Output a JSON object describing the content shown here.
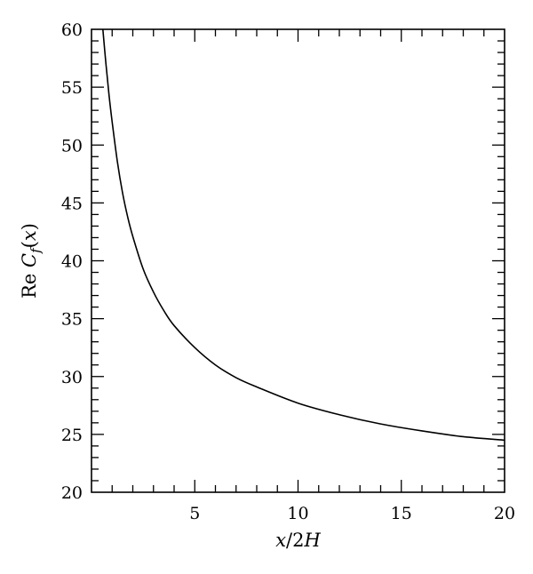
{
  "chart_data": {
    "type": "line",
    "title": "",
    "xlabel": "x/2H",
    "ylabel": "Re C_f(x)",
    "xlim": [
      0,
      20
    ],
    "ylim": [
      20,
      60
    ],
    "x_ticks": [
      5,
      10,
      15,
      20
    ],
    "x_tick_labels": [
      "5",
      "10",
      "15",
      "20"
    ],
    "y_ticks": [
      20,
      25,
      30,
      35,
      40,
      45,
      50,
      55,
      60
    ],
    "y_tick_labels": [
      "20",
      "25",
      "30",
      "35",
      "40",
      "45",
      "50",
      "55",
      "60"
    ],
    "grid": false,
    "legend": "none",
    "series": [
      {
        "color": "#000000",
        "x": [
          0.55,
          0.7,
          0.85,
          1.0,
          1.25,
          1.5,
          1.75,
          2.0,
          2.5,
          3.0,
          3.5,
          4.0,
          5.0,
          6.0,
          7.0,
          8.0,
          10.0,
          12.0,
          14.0,
          16.0,
          18.0,
          20.0
        ],
        "y": [
          60.0,
          57.0,
          54.3,
          52.0,
          48.6,
          45.9,
          43.8,
          42.1,
          39.3,
          37.3,
          35.7,
          34.4,
          32.5,
          31.0,
          29.9,
          29.1,
          27.7,
          26.7,
          25.9,
          25.3,
          24.8,
          24.5
        ]
      }
    ]
  }
}
